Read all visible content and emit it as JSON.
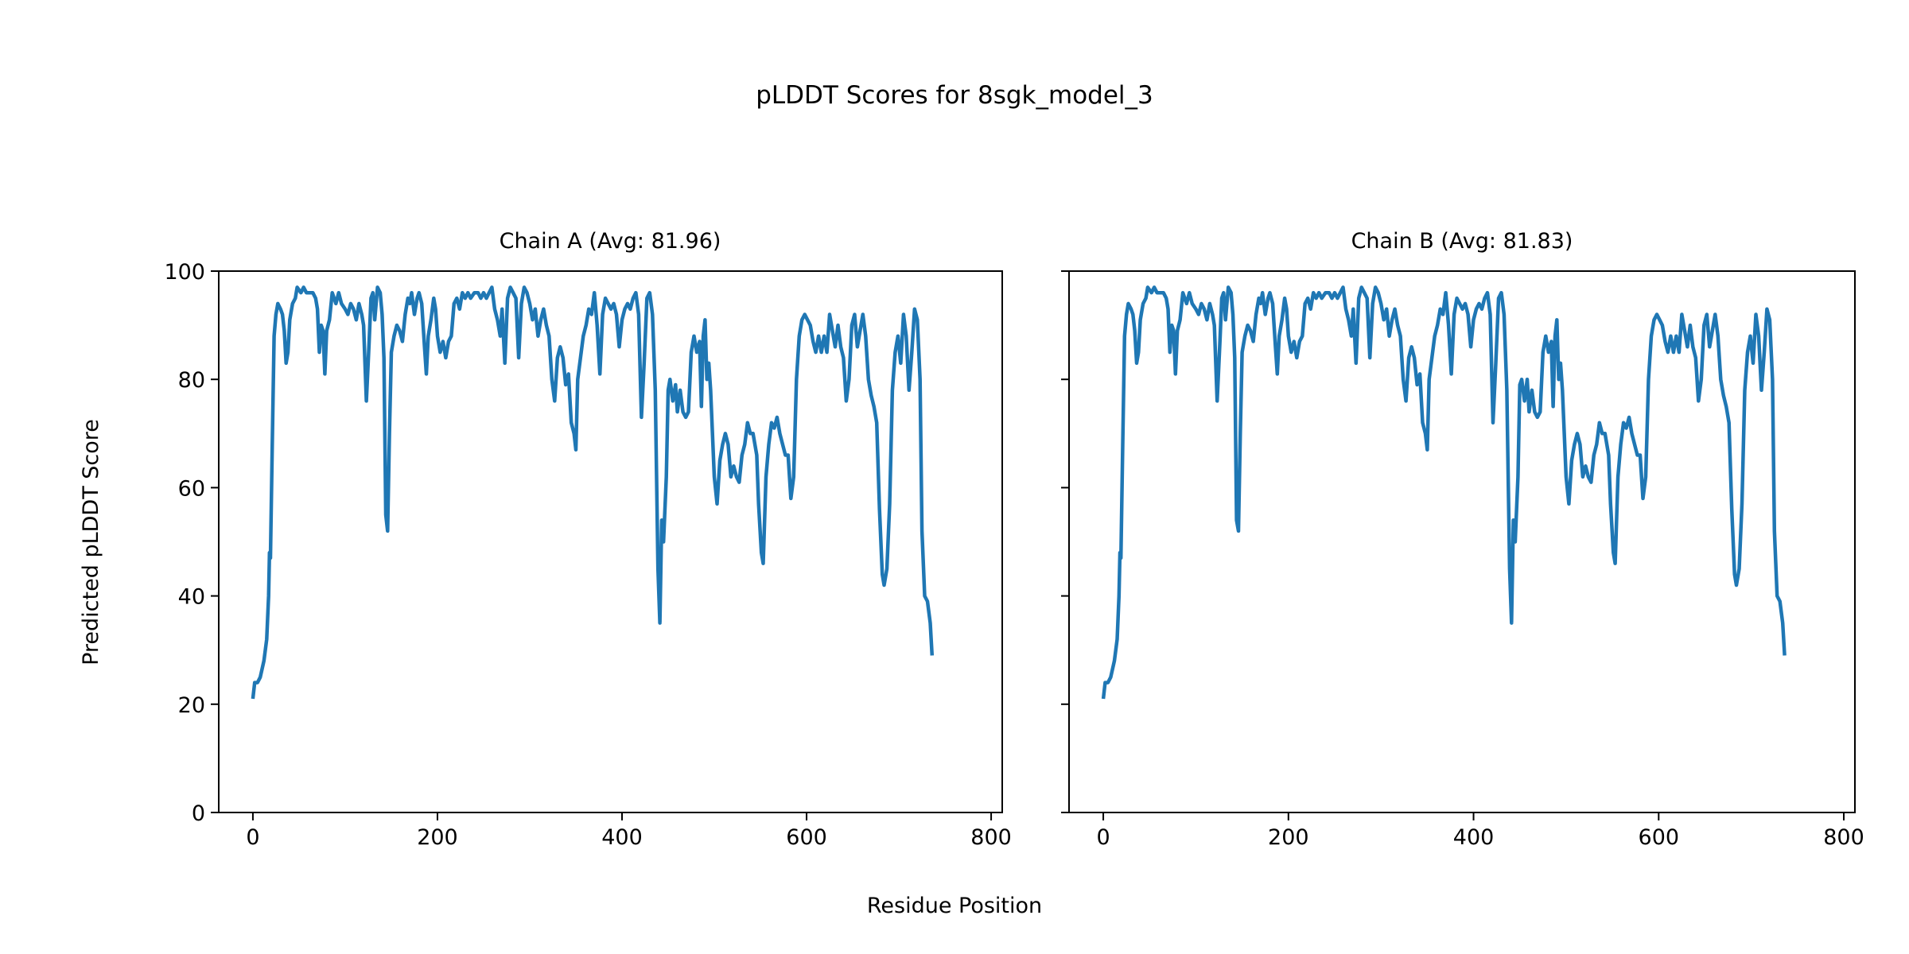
{
  "title": "pLDDT Scores for 8sgk_model_3",
  "xlabel": "Residue Position",
  "ylabel": "Predicted pLDDT Score",
  "line_color": "#1f77b4",
  "chart_data": [
    {
      "type": "line",
      "title": "Chain A (Avg: 81.96)",
      "xlim": [
        -37,
        812
      ],
      "ylim": [
        0,
        100
      ],
      "xticks": [
        0,
        200,
        400,
        600,
        800
      ],
      "yticks": [
        0,
        20,
        40,
        60,
        80,
        100
      ],
      "xtick_labels": [
        "0",
        "200",
        "400",
        "600",
        "800"
      ],
      "ytick_labels": [
        "0",
        "20",
        "40",
        "60",
        "80",
        "100"
      ],
      "grid": false,
      "x": [
        0,
        2,
        5,
        8,
        12,
        15,
        17,
        18,
        19,
        21,
        23,
        25,
        27,
        30,
        32,
        34,
        36,
        38,
        40,
        43,
        46,
        48,
        52,
        55,
        58,
        62,
        65,
        68,
        70,
        72,
        74,
        76,
        78,
        80,
        83,
        86,
        90,
        93,
        96,
        100,
        103,
        106,
        109,
        112,
        115,
        118,
        120,
        123,
        126,
        128,
        130,
        132,
        135,
        138,
        140,
        142,
        144,
        146,
        148,
        150,
        153,
        156,
        159,
        162,
        165,
        168,
        170,
        172,
        175,
        178,
        180,
        183,
        186,
        188,
        190,
        193,
        196,
        198,
        200,
        203,
        206,
        209,
        212,
        215,
        218,
        221,
        224,
        227,
        230,
        233,
        236,
        240,
        244,
        247,
        250,
        253,
        256,
        259,
        262,
        265,
        268,
        270,
        273,
        276,
        279,
        282,
        285,
        288,
        291,
        294,
        297,
        300,
        303,
        306,
        309,
        312,
        315,
        318,
        321,
        324,
        327,
        330,
        333,
        336,
        339,
        342,
        345,
        348,
        350,
        352,
        355,
        358,
        361,
        364,
        367,
        370,
        373,
        376,
        379,
        382,
        385,
        388,
        391,
        394,
        397,
        400,
        403,
        406,
        409,
        412,
        415,
        418,
        421,
        424,
        427,
        430,
        433,
        436,
        439,
        441,
        443,
        445,
        448,
        450,
        452,
        455,
        458,
        460,
        463,
        466,
        469,
        472,
        475,
        478,
        481,
        484,
        486,
        488,
        490,
        492,
        494,
        496,
        500,
        503,
        506,
        509,
        512,
        515,
        518,
        521,
        524,
        527,
        530,
        533,
        536,
        539,
        542,
        546,
        548,
        551,
        553,
        556,
        559,
        562,
        565,
        568,
        571,
        574,
        577,
        580,
        583,
        586,
        589,
        592,
        595,
        598,
        601,
        604,
        607,
        610,
        613,
        616,
        619,
        622,
        625,
        628,
        631,
        634,
        637,
        640,
        643,
        646,
        649,
        652,
        655,
        658,
        661,
        664,
        667,
        670,
        673,
        676,
        679,
        682,
        684,
        687,
        690,
        693,
        696,
        699,
        702,
        705,
        708,
        711,
        714,
        717,
        720,
        723,
        725,
        728,
        731,
        734,
        736
      ],
      "y": [
        21,
        24,
        24,
        25,
        28,
        32,
        40,
        48,
        47,
        68,
        88,
        92,
        94,
        93,
        92,
        89,
        83,
        85,
        91,
        94,
        95,
        97,
        96,
        97,
        96,
        96,
        96,
        95,
        93,
        85,
        90,
        89,
        81,
        89,
        91,
        96,
        94,
        96,
        94,
        93,
        92,
        94,
        93,
        91,
        94,
        92,
        90,
        76,
        87,
        95,
        96,
        91,
        97,
        96,
        92,
        84,
        55,
        52,
        70,
        85,
        88,
        90,
        89,
        87,
        92,
        95,
        94,
        96,
        92,
        95,
        96,
        94,
        86,
        81,
        88,
        91,
        95,
        93,
        88,
        85,
        87,
        84,
        87,
        88,
        94,
        95,
        93,
        96,
        95,
        96,
        95,
        96,
        96,
        95,
        96,
        95,
        96,
        97,
        93,
        91,
        88,
        93,
        83,
        95,
        97,
        96,
        95,
        84,
        94,
        97,
        96,
        94,
        91,
        93,
        88,
        91,
        93,
        90,
        88,
        80,
        76,
        84,
        86,
        84,
        79,
        81,
        72,
        70,
        67,
        80,
        84,
        88,
        90,
        93,
        92,
        96,
        90,
        81,
        92,
        95,
        94,
        93,
        94,
        92,
        86,
        91,
        93,
        94,
        93,
        95,
        96,
        92,
        73,
        83,
        95,
        96,
        92,
        78,
        45,
        35,
        54,
        50,
        62,
        78,
        80,
        76,
        79,
        74,
        78,
        74,
        73,
        74,
        85,
        88,
        85,
        87,
        75,
        88,
        91,
        80,
        83,
        78,
        62,
        57,
        65,
        68,
        70,
        68,
        62,
        64,
        62,
        61,
        66,
        68,
        72,
        70,
        70,
        66,
        57,
        48,
        46,
        62,
        68,
        72,
        71,
        73,
        70,
        68,
        66,
        66,
        58,
        62,
        80,
        88,
        91,
        92,
        91,
        90,
        87,
        85,
        88,
        85,
        88,
        85,
        92,
        89,
        86,
        90,
        86,
        84,
        76,
        80,
        90,
        92,
        86,
        89,
        92,
        88,
        80,
        77,
        75,
        72,
        56,
        44,
        42,
        45,
        57,
        78,
        85,
        88,
        83,
        92,
        88,
        78,
        85,
        93,
        91,
        80,
        52,
        40,
        39,
        35,
        29
      ]
    },
    {
      "type": "line",
      "title": "Chain B (Avg: 81.83)",
      "xlim": [
        -37,
        812
      ],
      "ylim": [
        0,
        100
      ],
      "xticks": [
        0,
        200,
        400,
        600,
        800
      ],
      "yticks": [
        0,
        20,
        40,
        60,
        80,
        100
      ],
      "xtick_labels": [
        "0",
        "200",
        "400",
        "600",
        "800"
      ],
      "grid": false,
      "x": [
        0,
        2,
        5,
        8,
        12,
        15,
        17,
        18,
        19,
        21,
        23,
        25,
        27,
        30,
        32,
        34,
        36,
        38,
        40,
        43,
        46,
        48,
        52,
        55,
        58,
        62,
        65,
        68,
        70,
        72,
        74,
        76,
        78,
        80,
        83,
        86,
        90,
        93,
        96,
        100,
        103,
        106,
        109,
        112,
        115,
        118,
        120,
        123,
        126,
        128,
        130,
        132,
        135,
        138,
        140,
        142,
        144,
        146,
        148,
        150,
        153,
        156,
        159,
        162,
        165,
        168,
        170,
        172,
        175,
        178,
        180,
        183,
        186,
        188,
        190,
        193,
        196,
        198,
        200,
        203,
        206,
        209,
        212,
        215,
        218,
        221,
        224,
        227,
        230,
        233,
        236,
        240,
        244,
        247,
        250,
        253,
        256,
        259,
        262,
        265,
        268,
        270,
        273,
        276,
        279,
        282,
        285,
        288,
        291,
        294,
        297,
        300,
        303,
        306,
        309,
        312,
        315,
        318,
        321,
        324,
        327,
        330,
        333,
        336,
        339,
        342,
        345,
        348,
        350,
        352,
        355,
        358,
        361,
        364,
        367,
        370,
        373,
        376,
        379,
        382,
        385,
        388,
        391,
        394,
        397,
        400,
        403,
        406,
        409,
        412,
        415,
        418,
        421,
        424,
        427,
        430,
        433,
        436,
        439,
        441,
        443,
        445,
        448,
        450,
        452,
        455,
        458,
        460,
        463,
        466,
        469,
        472,
        475,
        478,
        481,
        484,
        486,
        488,
        490,
        492,
        494,
        496,
        500,
        503,
        506,
        509,
        512,
        515,
        518,
        521,
        524,
        527,
        530,
        533,
        536,
        539,
        542,
        546,
        548,
        551,
        553,
        556,
        559,
        562,
        565,
        568,
        571,
        574,
        577,
        580,
        583,
        586,
        589,
        592,
        595,
        598,
        601,
        604,
        607,
        610,
        613,
        616,
        619,
        622,
        625,
        628,
        631,
        634,
        637,
        640,
        643,
        646,
        649,
        652,
        655,
        658,
        661,
        664,
        667,
        670,
        673,
        676,
        679,
        682,
        684,
        687,
        690,
        693,
        696,
        699,
        702,
        705,
        708,
        711,
        714,
        717,
        720,
        723,
        725,
        728,
        731,
        734,
        736
      ],
      "y": [
        21,
        24,
        24,
        25,
        28,
        32,
        40,
        48,
        47,
        68,
        88,
        92,
        94,
        93,
        92,
        89,
        83,
        85,
        91,
        94,
        95,
        97,
        96,
        97,
        96,
        96,
        96,
        95,
        93,
        85,
        90,
        89,
        81,
        89,
        91,
        96,
        94,
        96,
        94,
        93,
        92,
        94,
        93,
        91,
        94,
        92,
        90,
        76,
        87,
        95,
        96,
        91,
        97,
        96,
        92,
        84,
        54,
        52,
        70,
        85,
        88,
        90,
        89,
        87,
        92,
        95,
        94,
        96,
        92,
        95,
        96,
        94,
        86,
        81,
        88,
        91,
        95,
        93,
        88,
        85,
        87,
        84,
        87,
        88,
        94,
        95,
        93,
        96,
        95,
        96,
        95,
        96,
        96,
        95,
        96,
        95,
        96,
        97,
        93,
        91,
        88,
        93,
        83,
        95,
        97,
        96,
        95,
        84,
        94,
        97,
        96,
        94,
        91,
        93,
        88,
        91,
        93,
        90,
        88,
        80,
        76,
        84,
        86,
        84,
        79,
        81,
        72,
        70,
        67,
        80,
        84,
        88,
        90,
        93,
        92,
        96,
        90,
        81,
        92,
        95,
        94,
        93,
        94,
        92,
        86,
        91,
        93,
        94,
        93,
        95,
        96,
        92,
        72,
        83,
        95,
        96,
        92,
        78,
        45,
        35,
        54,
        50,
        62,
        79,
        80,
        76,
        80,
        74,
        78,
        74,
        73,
        74,
        85,
        88,
        85,
        87,
        75,
        88,
        91,
        80,
        83,
        78,
        62,
        57,
        65,
        68,
        70,
        68,
        62,
        64,
        62,
        61,
        66,
        68,
        72,
        70,
        70,
        66,
        57,
        48,
        46,
        62,
        68,
        72,
        71,
        73,
        70,
        68,
        66,
        66,
        58,
        62,
        80,
        88,
        91,
        92,
        91,
        90,
        87,
        85,
        88,
        85,
        88,
        85,
        92,
        89,
        86,
        90,
        86,
        84,
        76,
        80,
        90,
        92,
        86,
        89,
        92,
        88,
        80,
        77,
        75,
        72,
        56,
        44,
        42,
        45,
        57,
        78,
        85,
        88,
        83,
        92,
        88,
        78,
        85,
        93,
        91,
        80,
        52,
        40,
        39,
        35,
        29
      ]
    }
  ]
}
